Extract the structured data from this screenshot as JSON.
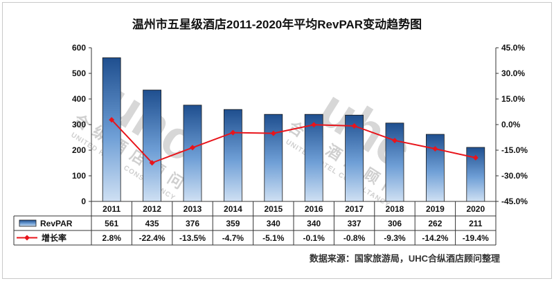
{
  "chart_data": {
    "type": "bar",
    "title": "温州市五星级酒店2011-2020年平均RevPAR变动趋势图",
    "categories": [
      "2011",
      "2012",
      "2013",
      "2014",
      "2015",
      "2016",
      "2017",
      "2018",
      "2019",
      "2020"
    ],
    "series": [
      {
        "name": "RevPAR",
        "type": "bar",
        "axis": "left",
        "values": [
          561,
          435,
          376,
          359,
          340,
          340,
          337,
          306,
          262,
          211
        ],
        "labels": [
          "561",
          "435",
          "376",
          "359",
          "340",
          "340",
          "337",
          "306",
          "262",
          "211"
        ],
        "color": "#5b8ec9"
      },
      {
        "name": "增长率",
        "type": "line",
        "axis": "right",
        "values": [
          2.8,
          -22.4,
          -13.5,
          -4.7,
          -5.1,
          -0.1,
          -0.8,
          -9.3,
          -14.2,
          -19.4
        ],
        "labels": [
          "2.8%",
          "-22.4%",
          "-13.5%",
          "-4.7%",
          "-5.1%",
          "-0.1%",
          "-0.8%",
          "-9.3%",
          "-14.2%",
          "-19.4%"
        ],
        "color": "#e8141b"
      }
    ],
    "left_axis": {
      "ylim": [
        0,
        600
      ],
      "ticks": [
        "0",
        "100",
        "200",
        "300",
        "400",
        "500",
        "600"
      ]
    },
    "right_axis": {
      "ylim": [
        -45,
        45
      ],
      "ticks": [
        "-45.0%",
        "-30.0%",
        "-15.0%",
        "0.0%",
        "15.0%",
        "30.0%",
        "45.0%"
      ]
    },
    "data_table": true,
    "grid": false,
    "source": "数据来源：国家旅游局，UHC合纵酒店顾问整理"
  },
  "watermark": {
    "logo_text": "uhc",
    "chinese": "合纵酒店顾问",
    "english": "UNITED HOTEL CONSULTANCY",
    "color": "#b8b8b8"
  }
}
